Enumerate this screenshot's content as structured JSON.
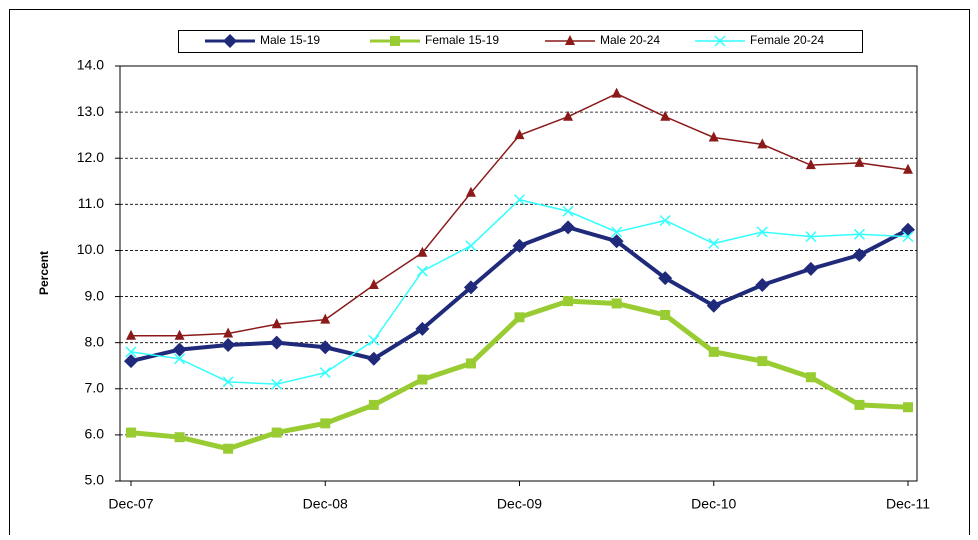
{
  "chart_data": {
    "type": "line",
    "y_label": "Percent",
    "categories": [
      "Dec-07",
      null,
      null,
      null,
      "Dec-08",
      null,
      null,
      null,
      "Dec-09",
      null,
      null,
      null,
      "Dec-10",
      null,
      null,
      null,
      "Dec-11"
    ],
    "series": [
      {
        "name": "Male 15-19",
        "color": "#1f2a7a",
        "marker": "diamond",
        "values": [
          7.6,
          7.85,
          7.95,
          8.0,
          7.9,
          7.65,
          8.3,
          9.2,
          10.1,
          10.5,
          10.2,
          9.4,
          8.8,
          9.25,
          9.6,
          9.9,
          10.45
        ]
      },
      {
        "name": "Female 15-19",
        "color": "#99cc33",
        "marker": "square",
        "values": [
          6.05,
          5.95,
          5.7,
          6.05,
          6.25,
          6.65,
          7.2,
          7.55,
          8.55,
          8.9,
          8.85,
          8.6,
          7.8,
          7.6,
          7.25,
          6.65,
          6.6
        ]
      },
      {
        "name": "Male 20-24",
        "color": "#8b1a1a",
        "marker": "triangle",
        "values": [
          8.15,
          8.15,
          8.2,
          8.4,
          8.5,
          9.25,
          9.95,
          11.25,
          12.5,
          12.9,
          13.4,
          12.9,
          12.45,
          12.3,
          11.85,
          11.9,
          11.75
        ]
      },
      {
        "name": "Female 20-24",
        "color": "#33ffff",
        "marker": "x",
        "values": [
          7.8,
          7.65,
          7.15,
          7.1,
          7.35,
          8.05,
          9.55,
          10.1,
          11.1,
          10.85,
          10.4,
          10.65,
          10.15,
          10.4,
          10.3,
          10.35,
          10.3
        ]
      }
    ],
    "ylim": [
      5,
      14
    ],
    "yticks": [
      {
        "value": 5,
        "label": "5.0"
      },
      {
        "value": 6,
        "label": "6.0"
      },
      {
        "value": 7,
        "label": "7.0"
      },
      {
        "value": 8,
        "label": "8.0"
      },
      {
        "value": 9,
        "label": "9.0"
      },
      {
        "value": 10,
        "label": "10.0"
      },
      {
        "value": 11,
        "label": "11.0"
      },
      {
        "value": 12,
        "label": "12.0"
      },
      {
        "value": 13,
        "label": "13.0"
      },
      {
        "value": 14,
        "label": "14.0"
      }
    ],
    "grid": true,
    "legend": "top"
  }
}
